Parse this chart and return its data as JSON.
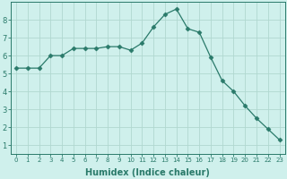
{
  "x": [
    0,
    1,
    2,
    3,
    4,
    5,
    6,
    7,
    8,
    9,
    10,
    11,
    12,
    13,
    14,
    15,
    16,
    17,
    18,
    19,
    20,
    21,
    22,
    23
  ],
  "y": [
    5.3,
    5.3,
    5.3,
    6.0,
    6.0,
    6.4,
    6.4,
    6.4,
    6.5,
    6.5,
    6.3,
    6.7,
    7.6,
    8.3,
    8.6,
    7.5,
    7.3,
    5.9,
    4.6,
    4.0,
    3.2,
    2.5,
    1.9,
    1.3
  ],
  "line_color": "#2a7a6a",
  "marker": "D",
  "marker_size": 2.5,
  "bg_color": "#cff0ec",
  "grid_color": "#b0d8d0",
  "xlabel": "Humidex (Indice chaleur)",
  "xlim": [
    -0.5,
    23.5
  ],
  "ylim": [
    0.5,
    9.0
  ],
  "yticks": [
    1,
    2,
    3,
    4,
    5,
    6,
    7,
    8
  ],
  "xticks": [
    0,
    1,
    2,
    3,
    4,
    5,
    6,
    7,
    8,
    9,
    10,
    11,
    12,
    13,
    14,
    15,
    16,
    17,
    18,
    19,
    20,
    21,
    22,
    23
  ],
  "label_color": "#2a7a6a",
  "tick_color": "#2a7a6a",
  "axis_color": "#2a7a6a",
  "xtick_fontsize": 5.0,
  "ytick_fontsize": 6.0,
  "xlabel_fontsize": 7.0
}
